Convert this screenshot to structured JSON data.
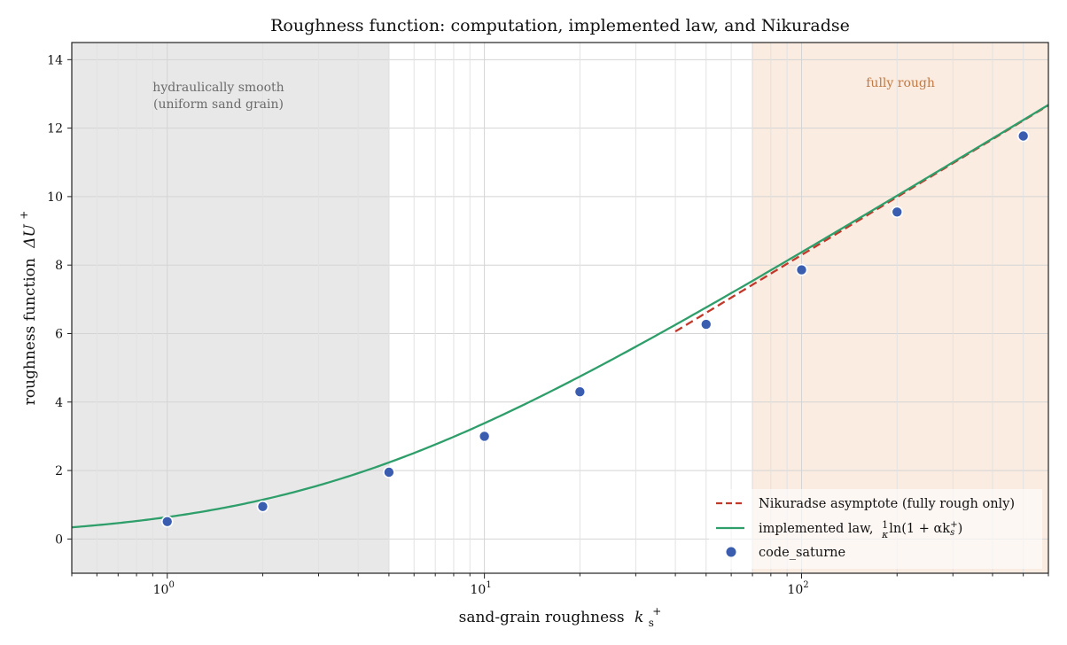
{
  "chart_data": {
    "type": "line",
    "title": "Roughness function: computation, implemented law, and Nikuradse",
    "xlabel_text": "sand-grain roughness",
    "xlabel_math": "k",
    "xlabel_sub": "s",
    "xlabel_sup": "+",
    "ylabel_text": "roughness function",
    "ylabel_math": "ΔU",
    "ylabel_sup": "+",
    "xscale": "log",
    "xlim": [
      0.5,
      600
    ],
    "ylim": [
      -1,
      14.5
    ],
    "grid": true,
    "legend_position": "lower-right",
    "x_ticks": [
      {
        "value": 1,
        "base": "10",
        "exp": "0"
      },
      {
        "value": 10,
        "base": "10",
        "exp": "1"
      },
      {
        "value": 100,
        "base": "10",
        "exp": "2"
      }
    ],
    "y_ticks": [
      0,
      2,
      4,
      6,
      8,
      10,
      12,
      14
    ],
    "regions": [
      {
        "name": "hydraulically-smooth",
        "x_range": [
          0.5,
          5
        ],
        "color": "#e8e8e8",
        "label_lines": [
          "hydraulically smooth",
          "(uniform sand grain)"
        ],
        "label_color": "#6b6b6b"
      },
      {
        "name": "fully-rough",
        "x_range": [
          70,
          600
        ],
        "color": "#fbece1",
        "label_lines": [
          "fully rough"
        ],
        "label_color": "#c07a45"
      }
    ],
    "series": [
      {
        "name_prefix": "implemented law,",
        "name_math": "ln(1 + αk",
        "kind": "line",
        "color": "#2e9e6a",
        "kappa": 0.41,
        "alpha": 0.3,
        "x_range": [
          0.5,
          600
        ]
      },
      {
        "name": "Nikuradse asymptote (fully rough only)",
        "kind": "dashed",
        "color": "#c0392b",
        "kappa": 0.41,
        "alpha": 0.3,
        "x_range": [
          40,
          600
        ]
      },
      {
        "name": "code_saturne",
        "kind": "scatter",
        "color": "#3a5db0",
        "x": [
          1,
          2,
          5,
          10,
          20,
          50,
          100,
          200,
          500
        ],
        "y": [
          0.51,
          0.95,
          1.95,
          3.0,
          4.3,
          6.27,
          7.86,
          9.55,
          11.77
        ]
      }
    ]
  }
}
